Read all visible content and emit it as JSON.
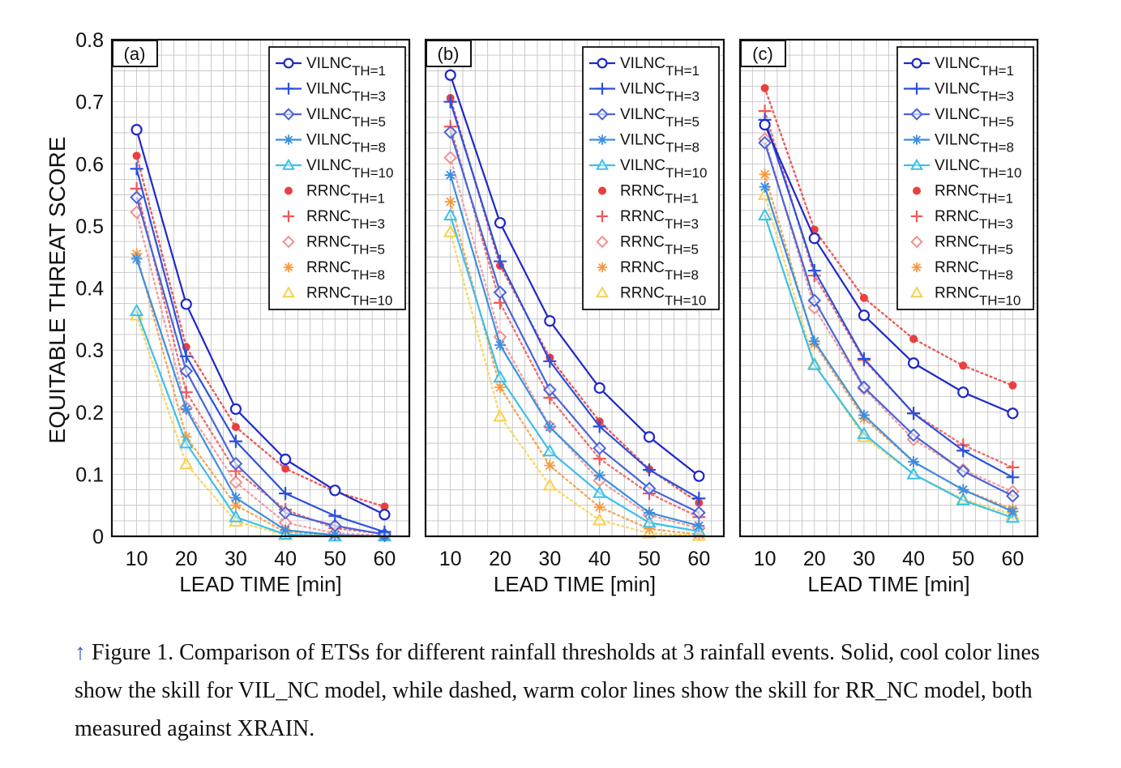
{
  "figure": {
    "ylabel": "EQUITABLE THREAT SCORE",
    "xlabel": "LEAD TIME [min]",
    "caption_arrow": "↑",
    "caption": "Figure 1. Comparison of ETSs for different rainfall thresholds at 3 rainfall events. Solid, cool color lines show the skill for VIL_NC model, while dashed, warm color lines show the skill for RR_NC model, both measured against XRAIN."
  },
  "legend": [
    {
      "base": "VILNC",
      "sub": "TH=1",
      "color": "#1f28c8",
      "marker": "circle",
      "style": "solid"
    },
    {
      "base": "VILNC",
      "sub": "TH=3",
      "color": "#2a50dc",
      "marker": "plus",
      "style": "solid"
    },
    {
      "base": "VILNC",
      "sub": "TH=5",
      "color": "#4a64d8",
      "marker": "diamond",
      "style": "solid"
    },
    {
      "base": "VILNC",
      "sub": "TH=8",
      "color": "#3c8ee0",
      "marker": "star",
      "style": "solid"
    },
    {
      "base": "VILNC",
      "sub": "TH=10",
      "color": "#3cc0e8",
      "marker": "triangle",
      "style": "solid"
    },
    {
      "base": "RRNC",
      "sub": "TH=1",
      "color": "#e84040",
      "marker": "dot",
      "style": "dashed"
    },
    {
      "base": "RRNC",
      "sub": "TH=3",
      "color": "#f05858",
      "marker": "plus",
      "style": "dashed"
    },
    {
      "base": "RRNC",
      "sub": "TH=5",
      "color": "#f09090",
      "marker": "diamond",
      "style": "dashed"
    },
    {
      "base": "RRNC",
      "sub": "TH=8",
      "color": "#f59a40",
      "marker": "star",
      "style": "dashed"
    },
    {
      "base": "RRNC",
      "sub": "TH=10",
      "color": "#f8d050",
      "marker": "triangle",
      "style": "dashed"
    }
  ],
  "chart_data": [
    {
      "type": "line",
      "panel_label": "(a)",
      "x": [
        10,
        20,
        30,
        40,
        50,
        60
      ],
      "xlim": [
        5,
        65
      ],
      "ylim": [
        0,
        0.8
      ],
      "xticks": [
        "10",
        "20",
        "30",
        "40",
        "50",
        "60"
      ],
      "yticks": [
        "0",
        "0.1",
        "0.2",
        "0.3",
        "0.4",
        "0.5",
        "0.6",
        "0.7",
        "0.8"
      ],
      "xlabel": "LEAD TIME [min]",
      "ylabel": "EQUITABLE THREAT SCORE",
      "grid": true,
      "legend_position": "top-right",
      "series": [
        {
          "name": "VILNC TH=1",
          "values": [
            0.655,
            0.374,
            0.205,
            0.124,
            0.074,
            0.035
          ]
        },
        {
          "name": "VILNC TH=3",
          "values": [
            0.592,
            0.29,
            0.153,
            0.069,
            0.033,
            0.007
          ]
        },
        {
          "name": "VILNC TH=5",
          "values": [
            0.546,
            0.266,
            0.117,
            0.038,
            0.017,
            0.003
          ]
        },
        {
          "name": "VILNC TH=8",
          "values": [
            0.447,
            0.205,
            0.062,
            0.01,
            0.002,
            0.0
          ]
        },
        {
          "name": "VILNC TH=10",
          "values": [
            0.363,
            0.15,
            0.031,
            0.003,
            0.0,
            0.0
          ]
        },
        {
          "name": "RRNC TH=1",
          "values": [
            0.613,
            0.305,
            0.176,
            0.109,
            0.072,
            0.048
          ]
        },
        {
          "name": "RRNC TH=3",
          "values": [
            0.56,
            0.232,
            0.105,
            0.043,
            0.013,
            0.004
          ]
        },
        {
          "name": "RRNC TH=5",
          "values": [
            0.522,
            0.207,
            0.087,
            0.022,
            0.005,
            0.001
          ]
        },
        {
          "name": "RRNC TH=8",
          "values": [
            0.455,
            0.16,
            0.05,
            0.007,
            0.001,
            0.0
          ]
        },
        {
          "name": "RRNC TH=10",
          "values": [
            0.356,
            0.116,
            0.024,
            0.002,
            0.0,
            0.0
          ]
        }
      ]
    },
    {
      "type": "line",
      "panel_label": "(b)",
      "x": [
        10,
        20,
        30,
        40,
        50,
        60
      ],
      "xlim": [
        5,
        65
      ],
      "ylim": [
        0,
        0.8
      ],
      "xticks": [
        "10",
        "20",
        "30",
        "40",
        "50",
        "60"
      ],
      "yticks": [
        "0",
        "0.1",
        "0.2",
        "0.3",
        "0.4",
        "0.5",
        "0.6",
        "0.7",
        "0.8"
      ],
      "xlabel": "LEAD TIME [min]",
      "ylabel": "",
      "grid": true,
      "legend_position": "top-right",
      "series": [
        {
          "name": "VILNC TH=1",
          "values": [
            0.743,
            0.505,
            0.347,
            0.239,
            0.16,
            0.097
          ]
        },
        {
          "name": "VILNC TH=3",
          "values": [
            0.7,
            0.443,
            0.282,
            0.177,
            0.107,
            0.061
          ]
        },
        {
          "name": "VILNC TH=5",
          "values": [
            0.651,
            0.393,
            0.236,
            0.142,
            0.077,
            0.038
          ]
        },
        {
          "name": "VILNC TH=8",
          "values": [
            0.582,
            0.308,
            0.176,
            0.098,
            0.038,
            0.017
          ]
        },
        {
          "name": "VILNC TH=10",
          "values": [
            0.517,
            0.256,
            0.137,
            0.07,
            0.022,
            0.008
          ]
        },
        {
          "name": "RRNC TH=1",
          "values": [
            0.706,
            0.436,
            0.288,
            0.185,
            0.108,
            0.054
          ]
        },
        {
          "name": "RRNC TH=3",
          "values": [
            0.66,
            0.376,
            0.223,
            0.125,
            0.069,
            0.031
          ]
        },
        {
          "name": "RRNC TH=5",
          "values": [
            0.61,
            0.321,
            0.177,
            0.09,
            0.034,
            0.013
          ]
        },
        {
          "name": "RRNC TH=8",
          "values": [
            0.539,
            0.24,
            0.114,
            0.047,
            0.012,
            0.003
          ]
        },
        {
          "name": "RRNC TH=10",
          "values": [
            0.49,
            0.193,
            0.082,
            0.026,
            0.005,
            0.001
          ]
        }
      ]
    },
    {
      "type": "line",
      "panel_label": "(c)",
      "x": [
        10,
        20,
        30,
        40,
        50,
        60
      ],
      "xlim": [
        5,
        65
      ],
      "ylim": [
        0,
        0.8
      ],
      "xticks": [
        "10",
        "20",
        "30",
        "40",
        "50",
        "60"
      ],
      "yticks": [
        "0",
        "0.1",
        "0.2",
        "0.3",
        "0.4",
        "0.5",
        "0.6",
        "0.7",
        "0.8"
      ],
      "xlabel": "LEAD TIME [min]",
      "ylabel": "",
      "grid": true,
      "legend_position": "top-right",
      "series": [
        {
          "name": "VILNC TH=1",
          "values": [
            0.663,
            0.48,
            0.356,
            0.279,
            0.232,
            0.198
          ]
        },
        {
          "name": "VILNC TH=3",
          "values": [
            0.671,
            0.428,
            0.286,
            0.198,
            0.138,
            0.095
          ]
        },
        {
          "name": "VILNC TH=5",
          "values": [
            0.634,
            0.38,
            0.24,
            0.163,
            0.105,
            0.065
          ]
        },
        {
          "name": "VILNC TH=8",
          "values": [
            0.563,
            0.314,
            0.195,
            0.12,
            0.075,
            0.04
          ]
        },
        {
          "name": "VILNC TH=10",
          "values": [
            0.517,
            0.276,
            0.165,
            0.1,
            0.058,
            0.03
          ]
        },
        {
          "name": "RRNC TH=1",
          "values": [
            0.722,
            0.494,
            0.384,
            0.318,
            0.275,
            0.243
          ]
        },
        {
          "name": "RRNC TH=3",
          "values": [
            0.685,
            0.42,
            0.284,
            0.198,
            0.147,
            0.111
          ]
        },
        {
          "name": "RRNC TH=5",
          "values": [
            0.64,
            0.368,
            0.238,
            0.156,
            0.107,
            0.072
          ]
        },
        {
          "name": "RRNC TH=8",
          "values": [
            0.583,
            0.31,
            0.19,
            0.12,
            0.075,
            0.044
          ]
        },
        {
          "name": "RRNC TH=10",
          "values": [
            0.55,
            0.278,
            0.16,
            0.1,
            0.06,
            0.035
          ]
        }
      ]
    }
  ]
}
